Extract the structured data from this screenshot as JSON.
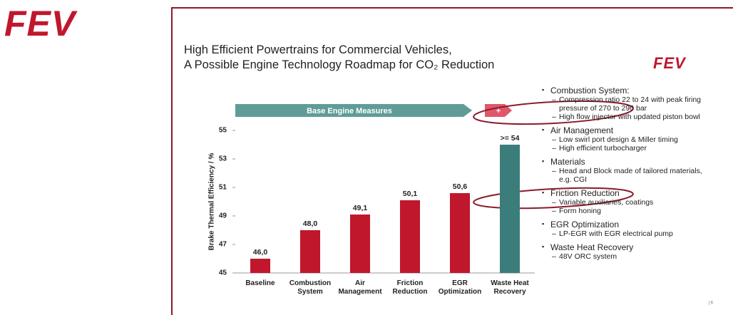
{
  "logo": "FEV",
  "slide": {
    "title_lines": [
      "High Efficient Powertrains for Commercial Vehicles,",
      "A Possible Engine Technology Roadmap for CO₂ Reduction"
    ],
    "logo": "FEV",
    "page_number": "| 6",
    "bullets": [
      {
        "text": "Combustion System:",
        "subs": [
          "Compression ratio 22 to 24 with peak firing pressure of 270 to 290 bar",
          "High flow injector with updated piston bowl"
        ]
      },
      {
        "text": "Air Management",
        "subs": [
          "Low swirl port design & Miller timing",
          "High efficient turbocharger"
        ]
      },
      {
        "text": "Materials",
        "subs": [
          "Head and Block made of tailored materials, e.g. CGI"
        ]
      },
      {
        "text": "Friction Reduction",
        "subs": [
          "Variable auxiliaries, coatings",
          "Form honing"
        ]
      },
      {
        "text": "EGR Optimization",
        "subs": [
          "LP-EGR with EGR electrical pump"
        ]
      },
      {
        "text": "Waste Heat Recovery",
        "subs": [
          "48V ORC system"
        ]
      }
    ]
  },
  "chart_data": {
    "type": "bar",
    "y_label": "Brake Thermal Efficiency / %",
    "annotations": [
      "Base Engine Measures",
      "+"
    ],
    "categories": [
      "Baseline",
      "Combustion System",
      "Air Management",
      "Friction Reduction",
      "EGR Optimization",
      "Waste Heat Recovery"
    ],
    "values": [
      46.0,
      48.0,
      49.1,
      50.1,
      50.6,
      54
    ],
    "value_labels": [
      "46,0",
      "48,0",
      "49,1",
      "50,1",
      "50,6",
      ">= 54"
    ],
    "colors": [
      "#c0172d",
      "#c0172d",
      "#c0172d",
      "#c0172d",
      "#c0172d",
      "#3b7d7a"
    ],
    "ylim": [
      45,
      55
    ],
    "yticks": [
      45,
      47,
      49,
      51,
      53,
      55
    ]
  }
}
